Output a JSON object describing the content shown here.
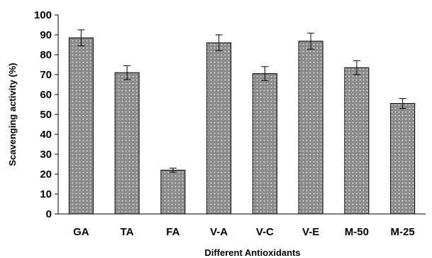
{
  "chart_data": {
    "type": "bar",
    "categories": [
      "GA",
      "TA",
      "FA",
      "V-A",
      "V-C",
      "V-E",
      "M-50",
      "M-25"
    ],
    "values": [
      88.5,
      71,
      22,
      86,
      70.5,
      86.8,
      73.5,
      55.5
    ],
    "errors": [
      4,
      3.5,
      1,
      4,
      3.5,
      4,
      3.5,
      2.5
    ],
    "xlabel": "Different Antioxidants",
    "ylabel": "Scavenging activity (%)",
    "ylim": [
      0,
      100
    ],
    "yticks": [
      0,
      10,
      20,
      30,
      40,
      50,
      60,
      70,
      80,
      90,
      100
    ],
    "grid": false,
    "legend": "none",
    "bar_fill": "#8c8c8c",
    "bar_dot_color": "#ffffff",
    "bar_stroke": "#000000"
  }
}
